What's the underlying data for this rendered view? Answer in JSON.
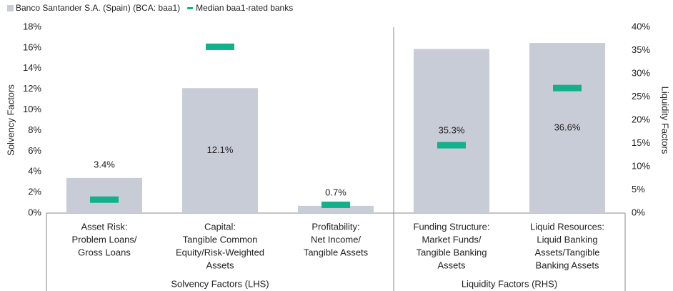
{
  "chart_data": {
    "type": "bar",
    "y_label": "Solvency Factors",
    "y2_label": "Liquidity Factors",
    "categories": [
      [
        "Asset Risk:",
        "Problem Loans/",
        "Gross Loans"
      ],
      [
        "Capital:",
        "Tangible Common",
        "Equity/Risk-Weighted",
        "Assets"
      ],
      [
        "Profitability:",
        "Net Income/",
        "Tangible Assets"
      ],
      [
        "Funding Structure:",
        "Market Funds/",
        "Tangible Banking",
        "Assets"
      ],
      [
        "Liquid Resources:",
        "Liquid Banking",
        "Assets/Tangible",
        "Banking Assets"
      ]
    ],
    "category_axes": [
      "y",
      "y",
      "y",
      "y2",
      "y2"
    ],
    "groups": [
      {
        "label": "Solvency Factors (LHS)",
        "categories": [
          0,
          1,
          2
        ]
      },
      {
        "label": "Liquidity Factors (RHS)",
        "categories": [
          3,
          4
        ]
      }
    ],
    "series": [
      {
        "name": "Banco Santander S.A. (Spain) (BCA: baa1)",
        "color": "#c8ccd6",
        "mark": "bar",
        "values": [
          3.4,
          12.1,
          0.7,
          35.3,
          36.6
        ],
        "value_labels": [
          "3.4%",
          "12.1%",
          "0.7%",
          "35.3%",
          "36.6%"
        ]
      },
      {
        "name": "Median baa1-rated banks",
        "color": "#13b08c",
        "mark": "dash",
        "values": [
          1.3,
          16.1,
          0.8,
          14.6,
          26.9
        ]
      }
    ],
    "ylim": [
      0,
      18
    ],
    "yticks": [
      {
        "value": 0,
        "label": "0%"
      },
      {
        "value": 2,
        "label": "2%"
      },
      {
        "value": 4,
        "label": "4%"
      },
      {
        "value": 6,
        "label": "6%"
      },
      {
        "value": 8,
        "label": "8%"
      },
      {
        "value": 10,
        "label": "10%"
      },
      {
        "value": 12,
        "label": "12%"
      },
      {
        "value": 14,
        "label": "14%"
      },
      {
        "value": 16,
        "label": "16%"
      },
      {
        "value": 18,
        "label": "18%"
      }
    ],
    "y2lim": [
      0,
      40
    ],
    "y2ticks": [
      {
        "value": 0,
        "label": "0%"
      },
      {
        "value": 5,
        "label": "5%"
      },
      {
        "value": 10,
        "label": "10%"
      },
      {
        "value": 15,
        "label": "15%"
      },
      {
        "value": 20,
        "label": "20%"
      },
      {
        "value": 25,
        "label": "25%"
      },
      {
        "value": 30,
        "label": "30%"
      },
      {
        "value": 35,
        "label": "35%"
      },
      {
        "value": 40,
        "label": "40%"
      }
    ]
  }
}
